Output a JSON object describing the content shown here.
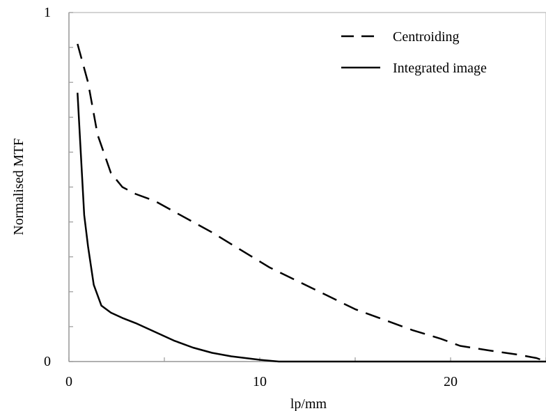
{
  "chart_data": {
    "type": "line",
    "xlabel": "lp/mm",
    "ylabel": "Normalised MTF",
    "xlim": [
      0,
      25
    ],
    "ylim": [
      0,
      1
    ],
    "x_ticks": [
      0,
      10,
      20
    ],
    "x_tick_labels": [
      "0",
      "10",
      "20"
    ],
    "y_ticks": [
      0,
      1
    ],
    "y_tick_labels": [
      "0",
      "1"
    ],
    "grid": false,
    "legend_position": "top-right",
    "series": [
      {
        "name": "Centroiding",
        "style": "dashed",
        "color": "#000000",
        "x": [
          0.45,
          1.0,
          1.5,
          2.2,
          2.8,
          3.5,
          4.5,
          5.5,
          6.5,
          7.5,
          9.0,
          10.5,
          12.0,
          13.5,
          15.0,
          16.5,
          18.0,
          19.5,
          20.5,
          22.0,
          23.5,
          24.5,
          25.0
        ],
        "y": [
          0.91,
          0.8,
          0.65,
          0.54,
          0.5,
          0.48,
          0.46,
          0.43,
          0.4,
          0.37,
          0.32,
          0.27,
          0.23,
          0.19,
          0.15,
          0.12,
          0.09,
          0.065,
          0.045,
          0.032,
          0.02,
          0.01,
          0.0
        ]
      },
      {
        "name": "Integrated image",
        "style": "solid",
        "color": "#000000",
        "x": [
          0.45,
          0.6,
          0.8,
          1.0,
          1.3,
          1.7,
          2.2,
          2.8,
          3.5,
          4.5,
          5.5,
          6.5,
          7.5,
          8.5,
          10.0,
          11.0,
          25.0
        ],
        "y": [
          0.77,
          0.62,
          0.42,
          0.33,
          0.22,
          0.16,
          0.14,
          0.125,
          0.11,
          0.085,
          0.06,
          0.04,
          0.025,
          0.015,
          0.005,
          0.0,
          0.0
        ]
      }
    ]
  }
}
